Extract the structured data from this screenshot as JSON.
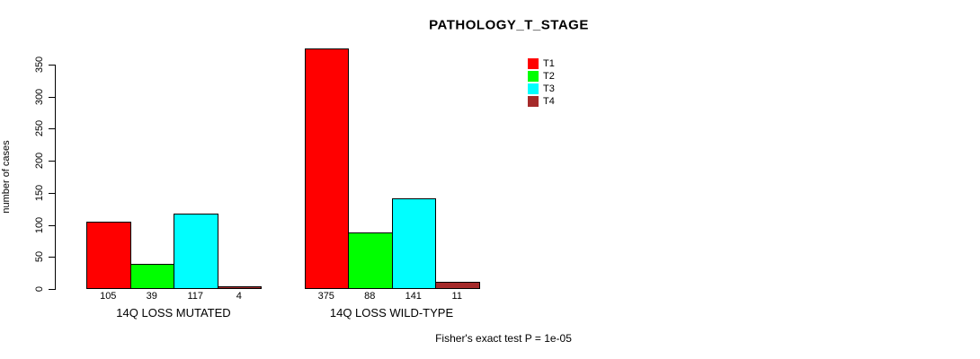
{
  "title": "PATHOLOGY_T_STAGE",
  "footer_note": "Fisher's exact test P = 1e-05",
  "colors": {
    "t1": "#FF0000",
    "t2": "#00FF00",
    "t3": "#00FFFF",
    "t4": "#A52A2A",
    "axis": "#000000"
  },
  "chart_data": {
    "type": "bar",
    "title": "PATHOLOGY_T_STAGE",
    "xlabel": "",
    "ylabel": "number of cases",
    "categories": [
      "14Q LOSS MUTATED",
      "14Q LOSS WILD-TYPE"
    ],
    "series": [
      {
        "name": "T1",
        "color": "#FF0000",
        "values": [
          105,
          375
        ]
      },
      {
        "name": "T2",
        "color": "#00FF00",
        "values": [
          39,
          88
        ]
      },
      {
        "name": "T3",
        "color": "#00FFFF",
        "values": [
          117,
          141
        ]
      },
      {
        "name": "T4",
        "color": "#A52A2A",
        "values": [
          4,
          11
        ]
      }
    ],
    "bar_value_labels": [
      [
        "105",
        "39",
        "117",
        "4"
      ],
      [
        "375",
        "88",
        "141",
        "11"
      ]
    ],
    "ylim": [
      0,
      350
    ],
    "yticks": [
      0,
      50,
      100,
      150,
      200,
      250,
      300,
      350
    ],
    "grid": false,
    "legend_position": "top-right-inside",
    "legend_entries": [
      "T1",
      "T2",
      "T3",
      "T4"
    ],
    "annotation": "Fisher's exact test P = 1e-05"
  }
}
